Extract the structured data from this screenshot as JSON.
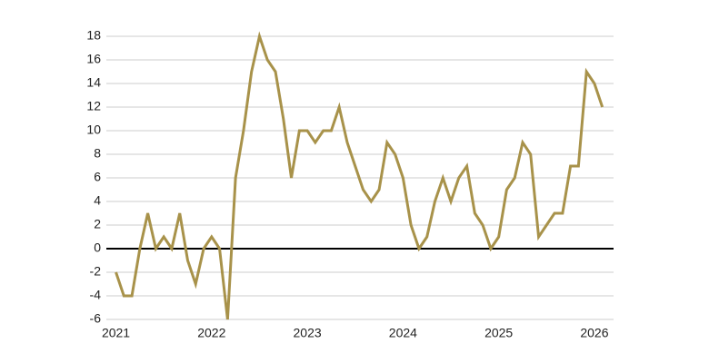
{
  "chart_data": {
    "type": "line",
    "x": [
      2021,
      2021.083,
      2021.167,
      2021.25,
      2021.333,
      2021.417,
      2021.5,
      2021.583,
      2021.667,
      2021.75,
      2021.833,
      2021.917,
      2022,
      2022.083,
      2022.167,
      2022.25,
      2022.333,
      2022.417,
      2022.5,
      2022.583,
      2022.667,
      2022.75,
      2022.833,
      2022.917,
      2023,
      2023.083,
      2023.167,
      2023.25,
      2023.333,
      2023.417,
      2023.5,
      2023.583,
      2023.667,
      2023.75,
      2023.833,
      2023.917,
      2024,
      2024.083,
      2024.167,
      2024.25,
      2024.333,
      2024.417,
      2024.5,
      2024.583,
      2024.667,
      2024.75,
      2024.833,
      2024.917,
      2025,
      2025.083,
      2025.167,
      2025.25,
      2025.333,
      2025.417,
      2025.5,
      2025.583,
      2025.667,
      2025.75,
      2025.833,
      2025.917,
      2026,
      2026.083
    ],
    "series": [
      {
        "color": "#a8924a",
        "values": [
          -2,
          -4,
          -4,
          0,
          3,
          0,
          1,
          0,
          3,
          -1,
          -3,
          0,
          1,
          0,
          -6,
          6,
          10,
          15,
          18,
          16,
          15,
          11,
          6,
          10,
          10,
          9,
          10,
          10,
          12,
          9,
          7,
          5,
          4,
          5,
          9,
          8,
          6,
          2,
          0,
          1,
          4,
          6,
          4,
          6,
          7,
          3,
          2,
          0,
          1,
          5,
          6,
          9,
          8,
          1,
          2,
          3,
          3,
          7,
          7,
          15,
          14,
          12
        ]
      }
    ],
    "xlim": [
      2020.9,
      2026.2
    ],
    "xticks": [
      2021,
      2022,
      2023,
      2024,
      2025,
      2026
    ],
    "ylim": [
      -6,
      18
    ],
    "yticks": [
      -6,
      -4,
      -2,
      0,
      2,
      4,
      6,
      8,
      10,
      12,
      14,
      16,
      18
    ],
    "grid": true
  }
}
